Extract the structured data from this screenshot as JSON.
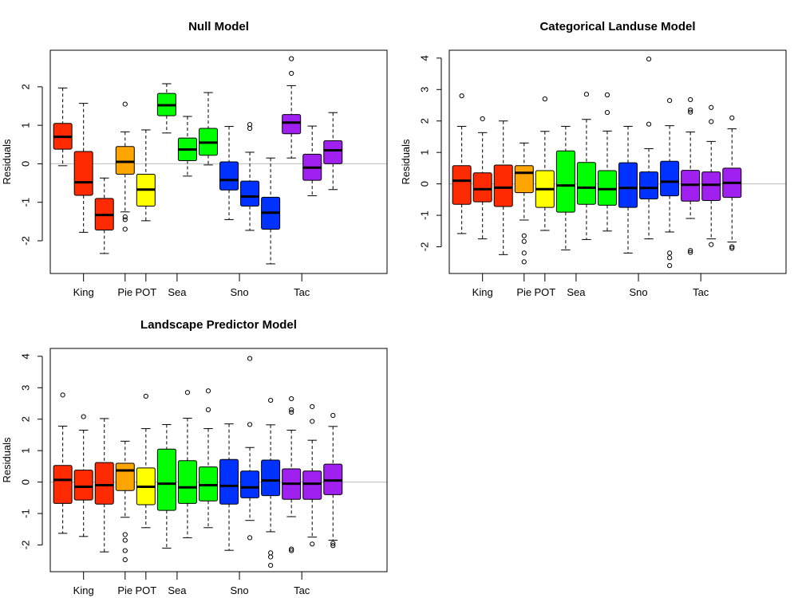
{
  "colors": {
    "King": "#ff2a00",
    "Pie": "#ffa500",
    "POT": "#ffff00",
    "Sea": "#00ff00",
    "Sno": "#0032ff",
    "Tac": "#a020f0"
  },
  "chart_data": [
    {
      "type": "boxplot",
      "title": "Null Model",
      "ylabel": "Residuals",
      "xlabel": "",
      "ylim": [
        -2.85,
        2.95
      ],
      "yticks": [
        -2,
        -1,
        0,
        1,
        2
      ],
      "grid": false,
      "reference_line": 0,
      "xlim": [
        0.4,
        16.6
      ],
      "xtick_labels": [
        {
          "label": "King",
          "x": 2
        },
        {
          "label": "Pie",
          "x": 4
        },
        {
          "label": "POT",
          "x": 5
        },
        {
          "label": "Sea",
          "x": 6.5
        },
        {
          "label": "Sno",
          "x": 9.5
        },
        {
          "label": "Tac",
          "x": 12.5
        }
      ],
      "boxes": [
        {
          "group": "King",
          "x": 1,
          "low": -0.05,
          "q1": 0.38,
          "median": 0.7,
          "q3": 1.05,
          "high": 1.97,
          "outliers": []
        },
        {
          "group": "King",
          "x": 2,
          "low": -1.78,
          "q1": -0.82,
          "median": -0.48,
          "q3": 0.32,
          "high": 1.57,
          "outliers": []
        },
        {
          "group": "King",
          "x": 3,
          "low": -2.33,
          "q1": -1.72,
          "median": -1.33,
          "q3": -0.9,
          "high": -0.37,
          "outliers": []
        },
        {
          "group": "Pie",
          "x": 4,
          "low": -1.25,
          "q1": -0.27,
          "median": 0.05,
          "q3": 0.45,
          "high": 0.83,
          "outliers": [
            1.55,
            -1.38,
            -1.45,
            -1.7
          ]
        },
        {
          "group": "POT",
          "x": 5,
          "low": -1.48,
          "q1": -1.1,
          "median": -0.67,
          "q3": -0.27,
          "high": 0.88,
          "outliers": []
        },
        {
          "group": "Sea",
          "x": 6,
          "low": 0.8,
          "q1": 1.25,
          "median": 1.52,
          "q3": 1.83,
          "high": 2.08,
          "outliers": []
        },
        {
          "group": "Sea",
          "x": 7,
          "low": -0.32,
          "q1": 0.08,
          "median": 0.37,
          "q3": 0.67,
          "high": 1.23,
          "outliers": []
        },
        {
          "group": "Sea",
          "x": 8,
          "low": -0.03,
          "q1": 0.22,
          "median": 0.55,
          "q3": 0.92,
          "high": 1.85,
          "outliers": []
        },
        {
          "group": "Sno",
          "x": 9,
          "low": -1.45,
          "q1": -0.68,
          "median": -0.42,
          "q3": 0.05,
          "high": 0.97,
          "outliers": []
        },
        {
          "group": "Sno",
          "x": 10,
          "low": -1.73,
          "q1": -1.1,
          "median": -0.85,
          "q3": -0.45,
          "high": 0.3,
          "outliers": [
            1.02,
            0.92
          ]
        },
        {
          "group": "Sno",
          "x": 11,
          "low": -2.6,
          "q1": -1.7,
          "median": -1.27,
          "q3": -0.87,
          "high": 0.15,
          "outliers": []
        },
        {
          "group": "Tac",
          "x": 12,
          "low": 0.15,
          "q1": 0.78,
          "median": 1.07,
          "q3": 1.28,
          "high": 2.03,
          "outliers": [
            2.73,
            2.35
          ]
        },
        {
          "group": "Tac",
          "x": 13,
          "low": -0.83,
          "q1": -0.43,
          "median": -0.1,
          "q3": 0.25,
          "high": 0.98,
          "outliers": []
        },
        {
          "group": "Tac",
          "x": 14,
          "low": -0.67,
          "q1": 0.0,
          "median": 0.35,
          "q3": 0.6,
          "high": 1.33,
          "outliers": []
        }
      ]
    },
    {
      "type": "boxplot",
      "title": "Categorical Landuse Model",
      "ylabel": "Residuals",
      "xlabel": "",
      "ylim": [
        -2.85,
        4.25
      ],
      "yticks": [
        -2,
        -1,
        0,
        1,
        2,
        3,
        4
      ],
      "grid": false,
      "reference_line": 0,
      "xlim": [
        0.4,
        16.6
      ],
      "xtick_labels": [
        {
          "label": "King",
          "x": 2
        },
        {
          "label": "Pie",
          "x": 4
        },
        {
          "label": "POT",
          "x": 5
        },
        {
          "label": "Sea",
          "x": 6.5
        },
        {
          "label": "Sno",
          "x": 9.5
        },
        {
          "label": "Tac",
          "x": 12.5
        }
      ],
      "boxes": [
        {
          "group": "King",
          "x": 1,
          "low": -1.58,
          "q1": -0.65,
          "median": 0.1,
          "q3": 0.58,
          "high": 1.83,
          "outliers": [
            2.8
          ]
        },
        {
          "group": "King",
          "x": 2,
          "low": -1.75,
          "q1": -0.57,
          "median": -0.17,
          "q3": 0.35,
          "high": 1.63,
          "outliers": [
            2.07
          ]
        },
        {
          "group": "King",
          "x": 3,
          "low": -2.25,
          "q1": -0.72,
          "median": -0.12,
          "q3": 0.6,
          "high": 2.0,
          "outliers": []
        },
        {
          "group": "Pie",
          "x": 4,
          "low": -1.15,
          "q1": -0.28,
          "median": 0.35,
          "q3": 0.58,
          "high": 1.3,
          "outliers": [
            -1.65,
            -1.83,
            -2.2,
            -2.48
          ]
        },
        {
          "group": "POT",
          "x": 5,
          "low": -1.48,
          "q1": -0.75,
          "median": -0.17,
          "q3": 0.42,
          "high": 1.67,
          "outliers": [
            2.7
          ]
        },
        {
          "group": "Sea",
          "x": 6,
          "low": -2.1,
          "q1": -0.9,
          "median": -0.05,
          "q3": 1.05,
          "high": 1.83,
          "outliers": []
        },
        {
          "group": "Sea",
          "x": 7,
          "low": -1.77,
          "q1": -0.65,
          "median": -0.12,
          "q3": 0.68,
          "high": 2.05,
          "outliers": [
            2.85
          ]
        },
        {
          "group": "Sea",
          "x": 8,
          "low": -1.5,
          "q1": -0.68,
          "median": -0.17,
          "q3": 0.42,
          "high": 1.68,
          "outliers": [
            2.83,
            2.27
          ]
        },
        {
          "group": "Sno",
          "x": 9,
          "low": -2.2,
          "q1": -0.75,
          "median": -0.13,
          "q3": 0.67,
          "high": 1.83,
          "outliers": []
        },
        {
          "group": "Sno",
          "x": 10,
          "low": -1.75,
          "q1": -0.48,
          "median": -0.13,
          "q3": 0.38,
          "high": 1.12,
          "outliers": [
            3.97,
            1.9
          ]
        },
        {
          "group": "Sno",
          "x": 11,
          "low": -1.53,
          "q1": -0.38,
          "median": 0.07,
          "q3": 0.72,
          "high": 1.85,
          "outliers": [
            2.65,
            -2.2,
            -2.35,
            -2.6
          ]
        },
        {
          "group": "Tac",
          "x": 12,
          "low": -1.1,
          "q1": -0.55,
          "median": -0.03,
          "q3": 0.43,
          "high": 1.65,
          "outliers": [
            2.68,
            2.35,
            2.28,
            -2.12,
            -2.18
          ]
        },
        {
          "group": "Tac",
          "x": 13,
          "low": -1.75,
          "q1": -0.53,
          "median": -0.03,
          "q3": 0.38,
          "high": 1.35,
          "outliers": [
            2.43,
            1.98,
            -1.93
          ]
        },
        {
          "group": "Tac",
          "x": 14,
          "low": -1.85,
          "q1": -0.43,
          "median": 0.03,
          "q3": 0.5,
          "high": 1.75,
          "outliers": [
            2.1,
            -2.0,
            -2.05
          ]
        }
      ]
    },
    {
      "type": "boxplot",
      "title": "Landscape Predictor Model",
      "ylabel": "Residuals",
      "xlabel": "",
      "ylim": [
        -2.85,
        4.25
      ],
      "yticks": [
        -2,
        -1,
        0,
        1,
        2,
        3,
        4
      ],
      "grid": false,
      "reference_line": 0,
      "xlim": [
        0.4,
        16.6
      ],
      "xtick_labels": [
        {
          "label": "King",
          "x": 2
        },
        {
          "label": "Pie",
          "x": 4
        },
        {
          "label": "POT",
          "x": 5
        },
        {
          "label": "Sea",
          "x": 6.5
        },
        {
          "label": "Sno",
          "x": 9.5
        },
        {
          "label": "Tac",
          "x": 12.5
        }
      ],
      "boxes": [
        {
          "group": "King",
          "x": 1,
          "low": -1.63,
          "q1": -0.68,
          "median": 0.07,
          "q3": 0.53,
          "high": 1.78,
          "outliers": [
            2.77
          ]
        },
        {
          "group": "King",
          "x": 2,
          "low": -1.73,
          "q1": -0.57,
          "median": -0.15,
          "q3": 0.38,
          "high": 1.65,
          "outliers": [
            2.08
          ]
        },
        {
          "group": "King",
          "x": 3,
          "low": -2.22,
          "q1": -0.7,
          "median": -0.1,
          "q3": 0.62,
          "high": 2.02,
          "outliers": []
        },
        {
          "group": "Pie",
          "x": 4,
          "low": -1.12,
          "q1": -0.27,
          "median": 0.37,
          "q3": 0.6,
          "high": 1.3,
          "outliers": [
            -1.67,
            -1.85,
            -2.18,
            -2.47
          ]
        },
        {
          "group": "POT",
          "x": 5,
          "low": -1.45,
          "q1": -0.72,
          "median": -0.15,
          "q3": 0.45,
          "high": 1.7,
          "outliers": [
            2.73
          ]
        },
        {
          "group": "Sea",
          "x": 6,
          "low": -2.1,
          "q1": -0.9,
          "median": -0.05,
          "q3": 1.05,
          "high": 1.83,
          "outliers": []
        },
        {
          "group": "Sea",
          "x": 7,
          "low": -1.77,
          "q1": -0.68,
          "median": -0.17,
          "q3": 0.68,
          "high": 2.03,
          "outliers": [
            2.85
          ]
        },
        {
          "group": "Sea",
          "x": 8,
          "low": -1.45,
          "q1": -0.6,
          "median": -0.1,
          "q3": 0.48,
          "high": 1.7,
          "outliers": [
            2.9,
            2.3
          ]
        },
        {
          "group": "Sno",
          "x": 9,
          "low": -2.17,
          "q1": -0.7,
          "median": -0.12,
          "q3": 0.72,
          "high": 1.85,
          "outliers": []
        },
        {
          "group": "Sno",
          "x": 10,
          "low": -1.22,
          "q1": -0.5,
          "median": -0.17,
          "q3": 0.35,
          "high": 1.1,
          "outliers": [
            3.93,
            1.83,
            -1.77
          ]
        },
        {
          "group": "Sno",
          "x": 11,
          "low": -1.58,
          "q1": -0.43,
          "median": 0.05,
          "q3": 0.7,
          "high": 1.82,
          "outliers": [
            2.6,
            -2.25,
            -2.38,
            -2.65
          ]
        },
        {
          "group": "Tac",
          "x": 12,
          "low": -1.1,
          "q1": -0.55,
          "median": -0.05,
          "q3": 0.42,
          "high": 1.65,
          "outliers": [
            2.65,
            2.3,
            2.22,
            -2.13,
            -2.18
          ]
        },
        {
          "group": "Tac",
          "x": 13,
          "low": -1.75,
          "q1": -0.55,
          "median": -0.05,
          "q3": 0.35,
          "high": 1.33,
          "outliers": [
            2.4,
            1.93,
            -1.97
          ]
        },
        {
          "group": "Tac",
          "x": 14,
          "low": -1.85,
          "q1": -0.4,
          "median": 0.05,
          "q3": 0.57,
          "high": 1.77,
          "outliers": [
            2.12,
            -1.95,
            -2.02
          ]
        }
      ]
    }
  ]
}
